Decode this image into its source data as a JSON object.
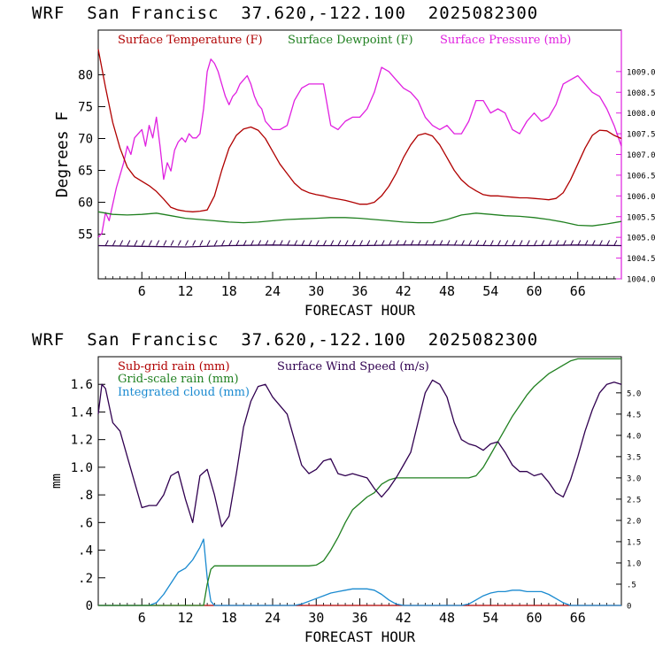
{
  "chart_data": [
    {
      "type": "line",
      "header": {
        "model": "WRF",
        "location": "San Francisc",
        "coords": "37.620,-122.100",
        "date": "2025082300"
      },
      "xlabel": "FORECAST HOUR",
      "ylabel": "Degrees F",
      "xlim": [
        0,
        72
      ],
      "ylim": [
        48,
        87
      ],
      "y2lim": [
        1004.0,
        1010.0
      ],
      "xticks": [
        "6",
        "12",
        "18",
        "24",
        "30",
        "36",
        "42",
        "48",
        "54",
        "60",
        "66"
      ],
      "yticks": [
        "55",
        "60",
        "65",
        "70",
        "75",
        "80"
      ],
      "y2ticks": [
        "1004.0",
        "1004.5",
        "1005.0",
        "1005.5",
        "1006.0",
        "1006.5",
        "1007.0",
        "1007.5",
        "1008.0",
        "1008.5",
        "1009.0"
      ],
      "legend": [
        "Surface Temperature (F)",
        "Surface Dewpoint (F)",
        "Surface Pressure (mb)"
      ],
      "colors": {
        "temperature": "#b00000",
        "dewpoint": "#208020",
        "pressure": "#e020e0",
        "wind": "#300050"
      },
      "series": [
        {
          "name": "Surface Temperature (F)",
          "axis": "left",
          "x": [
            0,
            1,
            2,
            3,
            4,
            5,
            6,
            7,
            8,
            9,
            10,
            11,
            12,
            13,
            14,
            15,
            16,
            17,
            18,
            19,
            20,
            21,
            22,
            23,
            24,
            25,
            26,
            27,
            28,
            29,
            30,
            31,
            32,
            33,
            34,
            35,
            36,
            37,
            38,
            39,
            40,
            41,
            42,
            43,
            44,
            45,
            46,
            47,
            48,
            49,
            50,
            51,
            52,
            53,
            54,
            55,
            56,
            57,
            58,
            59,
            60,
            61,
            62,
            63,
            64,
            65,
            66,
            67,
            68,
            69,
            70,
            71,
            72
          ],
          "y": [
            84,
            78,
            72.5,
            68.5,
            65.5,
            64,
            63.3,
            62.6,
            61.7,
            60.5,
            59.2,
            58.8,
            58.6,
            58.5,
            58.6,
            58.8,
            61,
            65,
            68.5,
            70.5,
            71.5,
            71.8,
            71.3,
            70,
            68,
            66,
            64.5,
            63,
            62,
            61.5,
            61.2,
            61,
            60.7,
            60.5,
            60.3,
            60,
            59.7,
            59.7,
            60,
            61,
            62.5,
            64.5,
            67,
            69,
            70.5,
            70.8,
            70.4,
            69,
            67,
            65,
            63.5,
            62.5,
            61.8,
            61.2,
            61,
            61,
            60.9,
            60.8,
            60.7,
            60.7,
            60.6,
            60.5,
            60.4,
            60.6,
            61.5,
            63.5,
            66,
            68.5,
            70.5,
            71.3,
            71.2,
            70.5,
            70
          ]
        },
        {
          "name": "Surface Dewpoint (F)",
          "axis": "left",
          "x": [
            0,
            2,
            4,
            6,
            8,
            10,
            12,
            14,
            16,
            18,
            20,
            22,
            24,
            26,
            28,
            30,
            32,
            34,
            36,
            38,
            40,
            42,
            44,
            46,
            48,
            50,
            52,
            54,
            56,
            58,
            60,
            62,
            64,
            66,
            68,
            70,
            72
          ],
          "y": [
            58.5,
            58.1,
            58,
            58.1,
            58.3,
            57.9,
            57.5,
            57.3,
            57.1,
            56.9,
            56.8,
            56.9,
            57.1,
            57.3,
            57.4,
            57.5,
            57.6,
            57.6,
            57.5,
            57.3,
            57.1,
            56.9,
            56.8,
            56.8,
            57.3,
            58,
            58.3,
            58.1,
            57.9,
            57.8,
            57.6,
            57.3,
            56.9,
            56.4,
            56.3,
            56.6,
            57
          ]
        },
        {
          "name": "Surface Pressure (mb)",
          "axis": "right",
          "x": [
            0,
            0.5,
            1,
            1.5,
            2,
            2.5,
            3,
            3.5,
            4,
            4.5,
            5,
            5.5,
            6,
            6.5,
            7,
            7.5,
            8,
            8.5,
            9,
            9.5,
            10,
            10.5,
            11,
            11.5,
            12,
            12.5,
            13,
            13.5,
            14,
            14.5,
            15,
            15.5,
            16,
            16.5,
            17,
            17.5,
            18,
            18.5,
            19,
            19.5,
            20,
            20.5,
            21,
            21.5,
            22,
            22.5,
            23,
            23.5,
            24,
            25,
            26,
            27,
            28,
            29,
            30,
            31,
            32,
            33,
            34,
            35,
            36,
            37,
            38,
            39,
            40,
            41,
            42,
            43,
            44,
            45,
            46,
            47,
            48,
            49,
            50,
            51,
            52,
            53,
            54,
            55,
            56,
            57,
            58,
            59,
            60,
            61,
            62,
            63,
            64,
            65,
            66,
            67,
            68,
            69,
            70,
            71,
            72
          ],
          "y": [
            1005,
            1005.1,
            1005.6,
            1005.4,
            1005.8,
            1006.2,
            1006.5,
            1006.8,
            1007.2,
            1007,
            1007.4,
            1007.5,
            1007.6,
            1007.2,
            1007.7,
            1007.4,
            1007.9,
            1007.2,
            1006.4,
            1006.8,
            1006.6,
            1007.1,
            1007.3,
            1007.4,
            1007.3,
            1007.5,
            1007.4,
            1007.4,
            1007.5,
            1008.1,
            1009,
            1009.3,
            1009.2,
            1009,
            1008.7,
            1008.4,
            1008.2,
            1008.4,
            1008.5,
            1008.7,
            1008.8,
            1008.9,
            1008.7,
            1008.4,
            1008.2,
            1008.1,
            1007.8,
            1007.7,
            1007.6,
            1007.6,
            1007.7,
            1008.3,
            1008.6,
            1008.7,
            1008.7,
            1008.7,
            1007.7,
            1007.6,
            1007.8,
            1007.9,
            1007.9,
            1008.1,
            1008.5,
            1009.1,
            1009,
            1008.8,
            1008.6,
            1008.5,
            1008.3,
            1007.9,
            1007.7,
            1007.6,
            1007.7,
            1007.5,
            1007.5,
            1007.8,
            1008.3,
            1008.3,
            1008,
            1008.1,
            1008,
            1007.6,
            1007.5,
            1007.8,
            1008,
            1007.8,
            1007.9,
            1008.2,
            1008.7,
            1008.8,
            1008.9,
            1008.7,
            1008.5,
            1008.4,
            1008.1,
            1007.7,
            1007.2
          ]
        },
        {
          "name": "",
          "axis": "left",
          "style": "wind-barbs",
          "x": [
            0,
            6,
            12,
            18,
            24,
            30,
            36,
            42,
            48,
            54,
            60,
            66,
            72
          ],
          "y": [
            53.2,
            53.1,
            53,
            53.2,
            53.3,
            53.2,
            53.2,
            53.3,
            53.3,
            53.2,
            53.2,
            53.3,
            53.2
          ]
        }
      ]
    },
    {
      "type": "line",
      "header": {
        "model": "WRF",
        "location": "San Francisc",
        "coords": "37.620,-122.100",
        "date": "2025082300"
      },
      "xlabel": "FORECAST HOUR",
      "ylabel": "mm",
      "xlim": [
        0,
        72
      ],
      "ylim": [
        0,
        1.8
      ],
      "y2lim": [
        0,
        5.85
      ],
      "xticks": [
        "6",
        "12",
        "18",
        "24",
        "30",
        "36",
        "42",
        "48",
        "54",
        "60",
        "66"
      ],
      "yticks": [
        "0",
        ".2",
        ".4",
        ".6",
        ".8",
        "1.0",
        "1.2",
        "1.4",
        "1.6"
      ],
      "y2ticks": [
        "0",
        ".5",
        "1.0",
        "1.5",
        "2.0",
        "2.5",
        "3.0",
        "3.5",
        "4.0",
        "4.5",
        "5.0"
      ],
      "legend": [
        "Sub-grid rain (mm)",
        "Surface Wind Speed (m/s)",
        "Grid-scale rain (mm)",
        "Integrated cloud (mm)"
      ],
      "colors": {
        "subgrid": "#b00000",
        "wind": "#300050",
        "gridscale": "#208020",
        "cloud": "#1a8ad0"
      },
      "series": [
        {
          "name": "Surface Wind Speed (m/s)",
          "axis": "right",
          "x": [
            0,
            0.5,
            1,
            2,
            3,
            4,
            5,
            6,
            7,
            8,
            9,
            10,
            11,
            12,
            13,
            14,
            15,
            16,
            17,
            18,
            19,
            20,
            21,
            22,
            23,
            24,
            25,
            26,
            27,
            28,
            29,
            30,
            31,
            32,
            33,
            34,
            35,
            36,
            37,
            38,
            39,
            40,
            41,
            42,
            43,
            44,
            45,
            46,
            47,
            48,
            49,
            50,
            51,
            52,
            53,
            54,
            55,
            56,
            57,
            58,
            59,
            60,
            61,
            62,
            63,
            64,
            65,
            66,
            67,
            68,
            69,
            70,
            71,
            72
          ],
          "y": [
            4.5,
            5.2,
            5.1,
            4.3,
            4.1,
            3.5,
            2.9,
            2.3,
            2.35,
            2.35,
            2.6,
            3.05,
            3.15,
            2.5,
            1.95,
            3.05,
            3.2,
            2.6,
            1.85,
            2.1,
            3.1,
            4.2,
            4.8,
            5.15,
            5.2,
            4.9,
            4.7,
            4.5,
            3.9,
            3.3,
            3.1,
            3.2,
            3.4,
            3.45,
            3.1,
            3.05,
            3.1,
            3.05,
            3.0,
            2.75,
            2.55,
            2.75,
            3.0,
            3.3,
            3.6,
            4.3,
            5.0,
            5.3,
            5.2,
            4.9,
            4.3,
            3.9,
            3.8,
            3.75,
            3.65,
            3.8,
            3.85,
            3.6,
            3.3,
            3.15,
            3.15,
            3.05,
            3.1,
            2.9,
            2.65,
            2.55,
            2.95,
            3.5,
            4.1,
            4.6,
            5.0,
            5.2,
            5.25,
            5.2
          ]
        },
        {
          "name": "Grid-scale rain (mm)",
          "axis": "right",
          "x": [
            0,
            14.5,
            15,
            15.5,
            16,
            20,
            24,
            28,
            29,
            30,
            31,
            32,
            33,
            34,
            35,
            36,
            37,
            38,
            39,
            40,
            41,
            42,
            43,
            44,
            45,
            46,
            47,
            48,
            49,
            50,
            51,
            52,
            53,
            54,
            55,
            56,
            57,
            58,
            59,
            60,
            61,
            62,
            63,
            64,
            65,
            66,
            67,
            68,
            69,
            70,
            71,
            72
          ],
          "y": [
            0,
            0,
            0.5,
            0.85,
            0.93,
            0.93,
            0.93,
            0.93,
            0.93,
            0.95,
            1.05,
            1.3,
            1.6,
            1.95,
            2.25,
            2.4,
            2.55,
            2.65,
            2.85,
            2.95,
            3.0,
            3.0,
            3.0,
            3.0,
            3.0,
            3.0,
            3.0,
            3.0,
            3.0,
            3.0,
            3.0,
            3.05,
            3.25,
            3.55,
            3.85,
            4.15,
            4.45,
            4.7,
            4.95,
            5.15,
            5.3,
            5.45,
            5.55,
            5.65,
            5.75,
            5.8,
            5.8,
            5.8,
            5.8,
            5.8,
            5.8,
            5.8
          ]
        },
        {
          "name": "Integrated cloud (mm)",
          "axis": "left",
          "x": [
            0,
            7,
            8,
            9,
            10,
            11,
            12,
            13,
            14,
            14.5,
            15,
            15.5,
            16,
            27,
            28,
            29,
            30,
            31,
            32,
            33,
            34,
            35,
            36,
            37,
            38,
            39,
            40,
            41,
            42,
            50,
            51,
            52,
            53,
            54,
            55,
            56,
            57,
            58,
            59,
            60,
            61,
            62,
            63,
            64,
            65,
            72
          ],
          "y": [
            0,
            0,
            0.02,
            0.08,
            0.16,
            0.24,
            0.27,
            0.33,
            0.42,
            0.48,
            0.2,
            0.03,
            0,
            0,
            0.01,
            0.03,
            0.05,
            0.07,
            0.09,
            0.1,
            0.11,
            0.12,
            0.12,
            0.12,
            0.11,
            0.08,
            0.04,
            0.01,
            0,
            0,
            0.01,
            0.04,
            0.07,
            0.09,
            0.1,
            0.1,
            0.11,
            0.11,
            0.1,
            0.1,
            0.1,
            0.08,
            0.05,
            0.02,
            0,
            0
          ]
        },
        {
          "name": "Sub-grid rain (mm)",
          "axis": "left",
          "x": [
            0,
            72
          ],
          "y": [
            0,
            0
          ]
        }
      ]
    }
  ]
}
